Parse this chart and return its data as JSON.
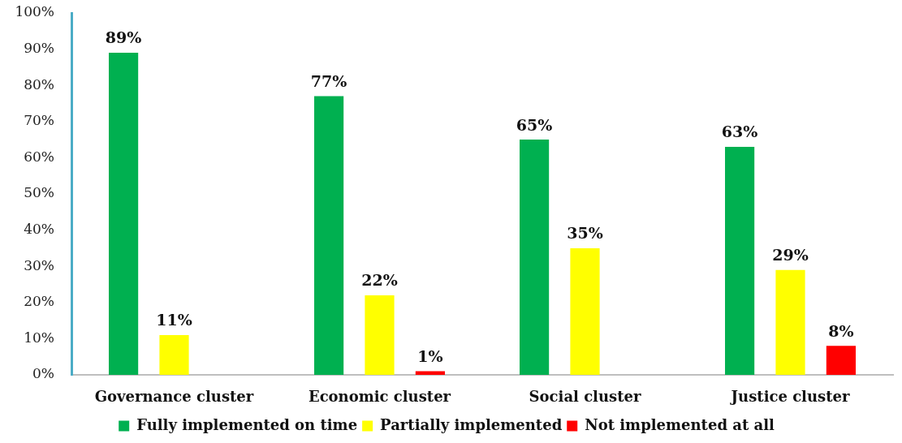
{
  "chart_data": {
    "type": "bar",
    "categories": [
      "Governance cluster",
      "Economic cluster",
      "Social cluster",
      "Justice cluster"
    ],
    "series": [
      {
        "name": "Fully implemented on time",
        "color": "#00b050",
        "values": [
          89,
          77,
          65,
          63
        ],
        "value_labels": [
          "89%",
          "77%",
          "65%",
          "63%"
        ]
      },
      {
        "name": "Partially implemented",
        "color": "#ffff00",
        "values": [
          11,
          22,
          35,
          29
        ],
        "value_labels": [
          "11%",
          "22%",
          "35%",
          "29%"
        ]
      },
      {
        "name": "Not implemented at all",
        "color": "#ff0000",
        "values": [
          null,
          1,
          null,
          8
        ],
        "value_labels": [
          null,
          "1%",
          null,
          "8%"
        ]
      }
    ],
    "ylim": [
      0,
      100
    ],
    "yticks": [
      {
        "value": 0,
        "label": "0%"
      },
      {
        "value": 10,
        "label": "10%"
      },
      {
        "value": 20,
        "label": "20%"
      },
      {
        "value": 30,
        "label": "30%"
      },
      {
        "value": 40,
        "label": "40%"
      },
      {
        "value": 50,
        "label": "50%"
      },
      {
        "value": 60,
        "label": "60%"
      },
      {
        "value": 70,
        "label": "70%"
      },
      {
        "value": 80,
        "label": "80%"
      },
      {
        "value": 90,
        "label": "90%"
      },
      {
        "value": 100,
        "label": "100%"
      }
    ],
    "legend": "bottom"
  }
}
